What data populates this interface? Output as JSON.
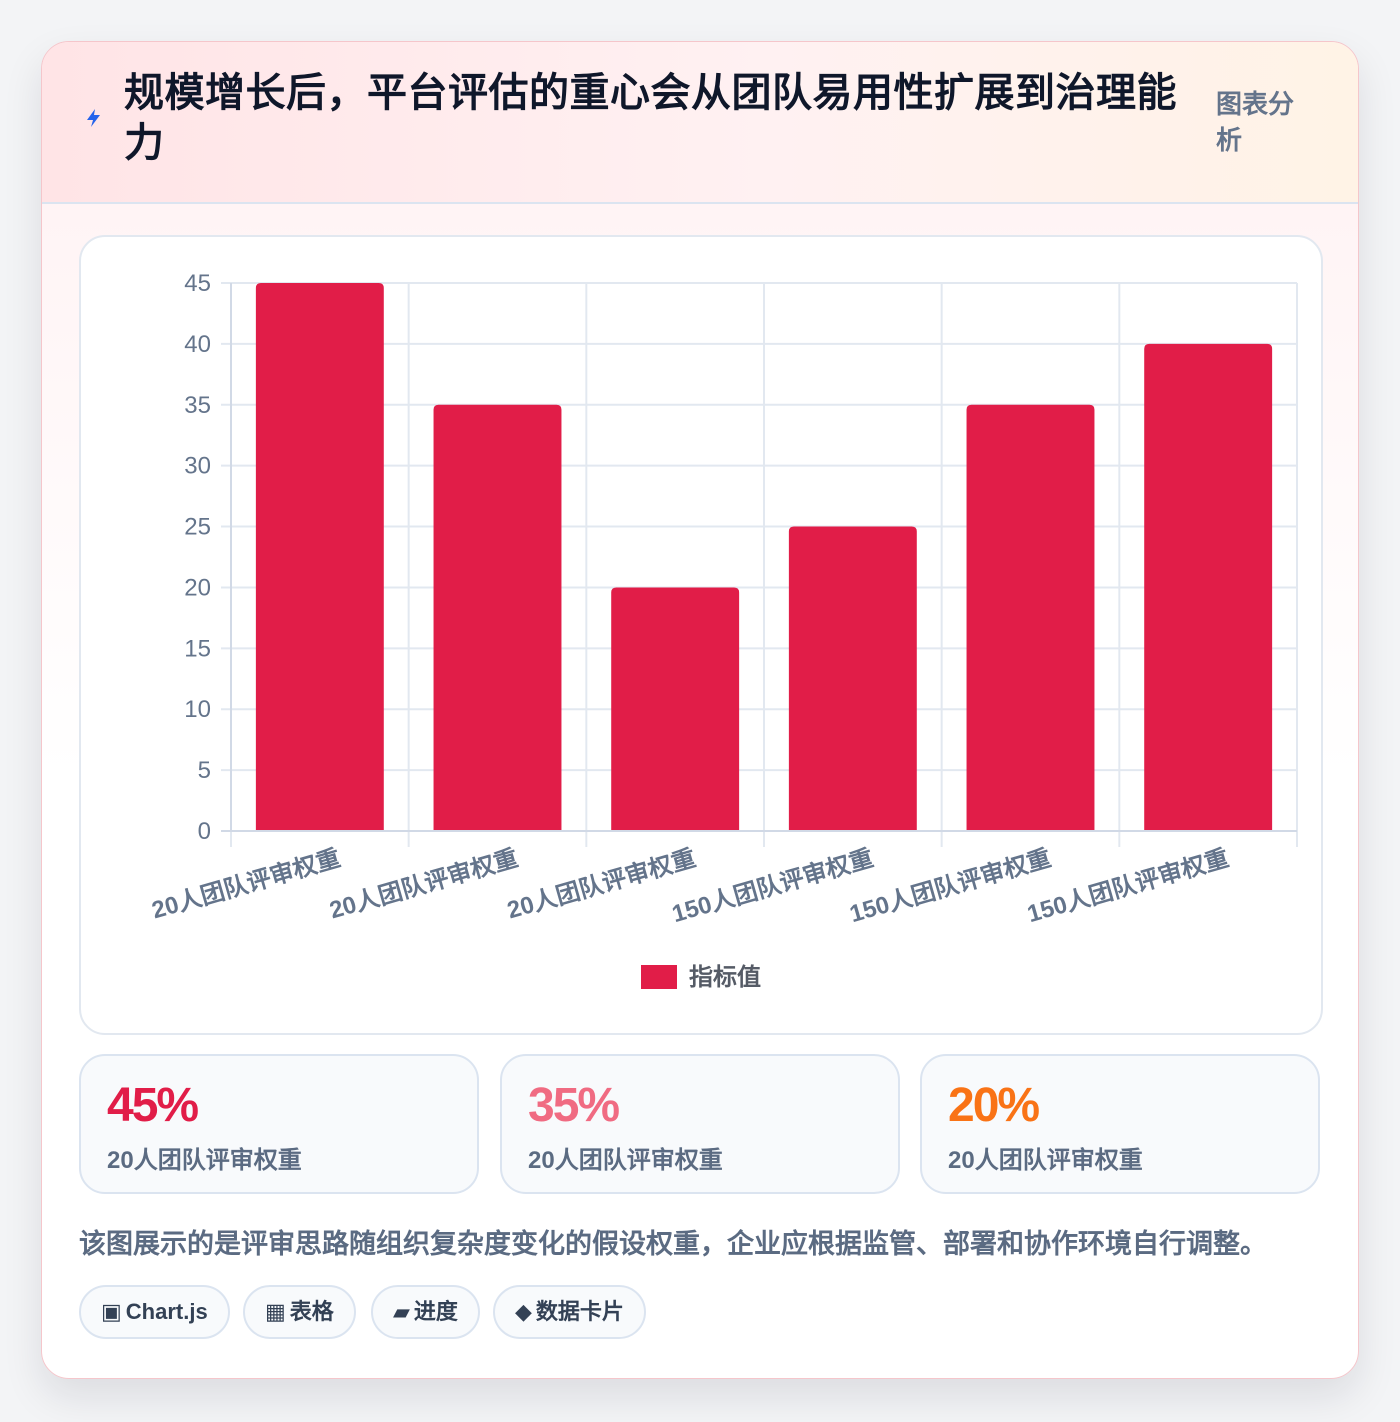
{
  "header": {
    "icon": "bolt-icon",
    "title": "规模增长后，平台评估的重心会从团队易用性扩展到治理能力",
    "tag": "图表分析"
  },
  "chart_data": {
    "type": "bar",
    "categories": [
      "20人团队评审权重",
      "20人团队评审权重",
      "20人团队评审权重",
      "150人团队评审权重",
      "150人团队评审权重",
      "150人团队评审权重"
    ],
    "series": [
      {
        "name": "指标值",
        "values": [
          45,
          35,
          20,
          25,
          35,
          40
        ],
        "color": "#e11d48"
      }
    ],
    "y_ticks": [
      0,
      5,
      10,
      15,
      20,
      25,
      30,
      35,
      40,
      45
    ],
    "ylim": [
      0,
      45
    ],
    "grid": true,
    "legend_position": "bottom"
  },
  "stats": [
    {
      "value": "45%",
      "label": "20人团队评审权重",
      "color": "#e11d48"
    },
    {
      "value": "35%",
      "label": "20人团队评审权重",
      "color": "#f06b82"
    },
    {
      "value": "20%",
      "label": "20人团队评审权重",
      "color": "#f97316"
    }
  ],
  "note": "该图展示的是评审思路随组织复杂度变化的假设权重，企业应根据监管、部署和协作环境自行调整。",
  "chips": [
    {
      "icon": "▣",
      "label": "Chart.js"
    },
    {
      "icon": "▦",
      "label": "表格"
    },
    {
      "icon": "▰",
      "label": "进度"
    },
    {
      "icon": "◆",
      "label": "数据卡片"
    }
  ]
}
